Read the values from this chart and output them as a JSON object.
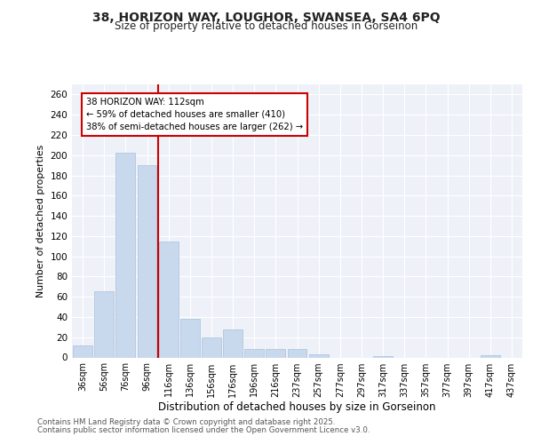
{
  "title1": "38, HORIZON WAY, LOUGHOR, SWANSEA, SA4 6PQ",
  "title2": "Size of property relative to detached houses in Gorseinon",
  "xlabel": "Distribution of detached houses by size in Gorseinon",
  "ylabel": "Number of detached properties",
  "categories": [
    "36sqm",
    "56sqm",
    "76sqm",
    "96sqm",
    "116sqm",
    "136sqm",
    "156sqm",
    "176sqm",
    "196sqm",
    "216sqm",
    "237sqm",
    "257sqm",
    "277sqm",
    "297sqm",
    "317sqm",
    "337sqm",
    "357sqm",
    "377sqm",
    "397sqm",
    "417sqm",
    "437sqm"
  ],
  "values": [
    12,
    65,
    202,
    190,
    115,
    38,
    20,
    28,
    8,
    8,
    8,
    3,
    0,
    0,
    1,
    0,
    0,
    0,
    0,
    2,
    0
  ],
  "bar_color": "#c8d9ee",
  "bar_edge_color": "#aabfda",
  "vline_color": "#cc0000",
  "annotation_text": "38 HORIZON WAY: 112sqm\n← 59% of detached houses are smaller (410)\n38% of semi-detached houses are larger (262) →",
  "annotation_box_facecolor": "#ffffff",
  "annotation_box_edgecolor": "#cc0000",
  "ylim": [
    0,
    270
  ],
  "yticks": [
    0,
    20,
    40,
    60,
    80,
    100,
    120,
    140,
    160,
    180,
    200,
    220,
    240,
    260
  ],
  "footer1": "Contains HM Land Registry data © Crown copyright and database right 2025.",
  "footer2": "Contains public sector information licensed under the Open Government Licence v3.0.",
  "bg_color": "#ffffff",
  "plot_bg_color": "#eef2f8"
}
